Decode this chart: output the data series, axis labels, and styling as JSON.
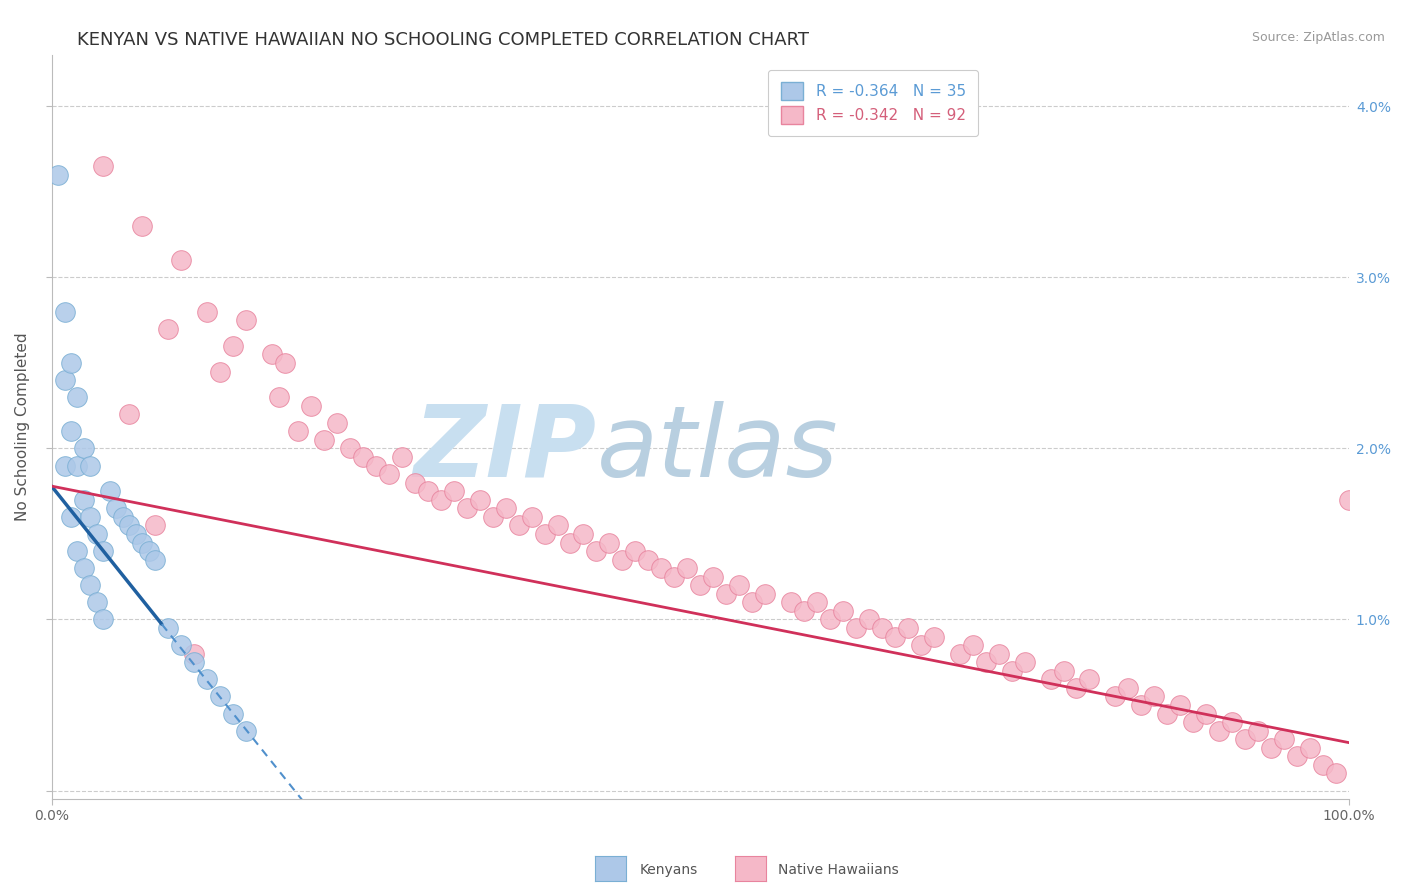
{
  "title": "KENYAN VS NATIVE HAWAIIAN NO SCHOOLING COMPLETED CORRELATION CHART",
  "source_text": "Source: ZipAtlas.com",
  "ylabel": "No Schooling Completed",
  "xlim": [
    0.0,
    100.0
  ],
  "ylim": [
    -0.05,
    4.3
  ],
  "yticks": [
    0.0,
    1.0,
    2.0,
    3.0,
    4.0
  ],
  "ytick_labels": [
    "",
    "1.0%",
    "2.0%",
    "3.0%",
    "4.0%"
  ],
  "background_color": "#ffffff",
  "grid_color": "#cccccc",
  "title_fontsize": 13,
  "axis_label_fontsize": 11,
  "tick_fontsize": 10,
  "legend_fontsize": 11,
  "kenyan_color": "#adc8e8",
  "kenyan_edge_color": "#7aafd4",
  "hawaiian_color": "#f5b8c8",
  "hawaiian_edge_color": "#e8849e",
  "kenyan_R": "-0.364",
  "kenyan_N": "35",
  "hawaiian_R": "-0.342",
  "hawaiian_N": "92",
  "kenyan_scatter_x": [
    0.5,
    1.0,
    1.0,
    1.0,
    1.5,
    1.5,
    1.5,
    2.0,
    2.0,
    2.0,
    2.5,
    2.5,
    2.5,
    3.0,
    3.0,
    3.0,
    3.5,
    3.5,
    4.0,
    4.0,
    4.5,
    5.0,
    5.5,
    6.0,
    6.5,
    7.0,
    7.5,
    8.0,
    9.0,
    10.0,
    11.0,
    12.0,
    13.0,
    14.0,
    15.0
  ],
  "kenyan_scatter_y": [
    3.6,
    1.9,
    2.4,
    2.8,
    1.6,
    2.1,
    2.5,
    1.4,
    1.9,
    2.3,
    1.3,
    1.7,
    2.0,
    1.2,
    1.6,
    1.9,
    1.1,
    1.5,
    1.0,
    1.4,
    1.75,
    1.65,
    1.6,
    1.55,
    1.5,
    1.45,
    1.4,
    1.35,
    0.95,
    0.85,
    0.75,
    0.65,
    0.55,
    0.45,
    0.35
  ],
  "hawaiian_scatter_x": [
    4.0,
    7.0,
    9.0,
    10.0,
    12.0,
    13.0,
    14.0,
    15.0,
    17.0,
    17.5,
    18.0,
    19.0,
    20.0,
    21.0,
    22.0,
    23.0,
    24.0,
    25.0,
    26.0,
    27.0,
    28.0,
    29.0,
    30.0,
    31.0,
    32.0,
    33.0,
    34.0,
    35.0,
    36.0,
    37.0,
    38.0,
    39.0,
    40.0,
    41.0,
    42.0,
    43.0,
    44.0,
    45.0,
    46.0,
    47.0,
    48.0,
    49.0,
    50.0,
    51.0,
    52.0,
    53.0,
    54.0,
    55.0,
    57.0,
    58.0,
    59.0,
    60.0,
    61.0,
    62.0,
    63.0,
    64.0,
    65.0,
    66.0,
    67.0,
    68.0,
    70.0,
    71.0,
    72.0,
    73.0,
    74.0,
    75.0,
    77.0,
    78.0,
    79.0,
    80.0,
    82.0,
    83.0,
    84.0,
    85.0,
    86.0,
    87.0,
    88.0,
    89.0,
    90.0,
    91.0,
    92.0,
    93.0,
    94.0,
    95.0,
    96.0,
    97.0,
    98.0,
    99.0,
    100.0,
    6.0,
    8.0,
    11.0
  ],
  "hawaiian_scatter_y": [
    3.65,
    3.3,
    2.7,
    3.1,
    2.8,
    2.45,
    2.6,
    2.75,
    2.55,
    2.3,
    2.5,
    2.1,
    2.25,
    2.05,
    2.15,
    2.0,
    1.95,
    1.9,
    1.85,
    1.95,
    1.8,
    1.75,
    1.7,
    1.75,
    1.65,
    1.7,
    1.6,
    1.65,
    1.55,
    1.6,
    1.5,
    1.55,
    1.45,
    1.5,
    1.4,
    1.45,
    1.35,
    1.4,
    1.35,
    1.3,
    1.25,
    1.3,
    1.2,
    1.25,
    1.15,
    1.2,
    1.1,
    1.15,
    1.1,
    1.05,
    1.1,
    1.0,
    1.05,
    0.95,
    1.0,
    0.95,
    0.9,
    0.95,
    0.85,
    0.9,
    0.8,
    0.85,
    0.75,
    0.8,
    0.7,
    0.75,
    0.65,
    0.7,
    0.6,
    0.65,
    0.55,
    0.6,
    0.5,
    0.55,
    0.45,
    0.5,
    0.4,
    0.45,
    0.35,
    0.4,
    0.3,
    0.35,
    0.25,
    0.3,
    0.2,
    0.25,
    0.15,
    0.1,
    1.7,
    2.2,
    1.55,
    0.8
  ],
  "kenyan_line_x0": 0.0,
  "kenyan_line_x_solid_end": 8.5,
  "kenyan_line_x_dashed_end": 22.0,
  "kenyan_line_y0": 1.78,
  "kenyan_line_slope": -0.095,
  "hawaiian_line_x0": 0.0,
  "hawaiian_line_x1": 100.0,
  "hawaiian_line_y0": 1.78,
  "hawaiian_line_y1": 0.28,
  "watermark_zip_color": "#c8dff0",
  "watermark_atlas_color": "#b8cfe0",
  "legend_blue_text_color": "#5b9bd5",
  "legend_pink_text_color": "#d45f7a"
}
